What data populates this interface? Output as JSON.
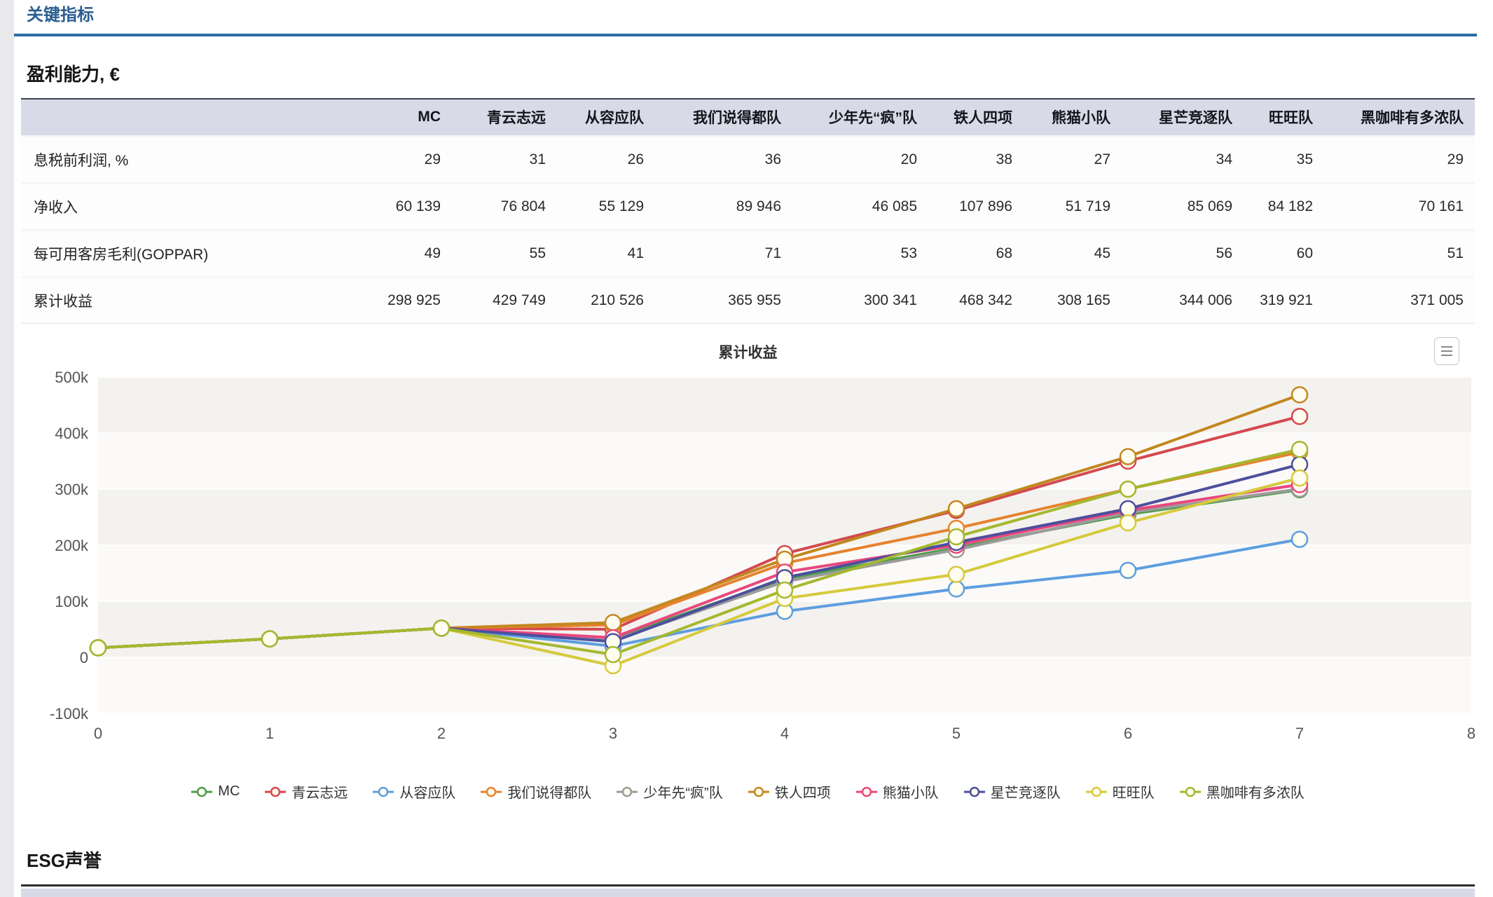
{
  "page": {
    "title": "关键指标",
    "section_title": "盈利能力, €",
    "next_section_title": "ESG声誉"
  },
  "accent_colors": {
    "title_blue": "#2a5d8f",
    "rule_blue": "#2d6ca3",
    "table_header_bg": "#d8dae7"
  },
  "table": {
    "columns": [
      "",
      "MC",
      "青云志远",
      "从容应队",
      "我们说得都队",
      "少年先“疯”队",
      "铁人四项",
      "熊猫小队",
      "星芒竞逐队",
      "旺旺队",
      "黑咖啡有多浓队"
    ],
    "rows": [
      {
        "label": "息税前利润, %",
        "values": [
          "29",
          "31",
          "26",
          "36",
          "20",
          "38",
          "27",
          "34",
          "35",
          "29"
        ]
      },
      {
        "label": "净收入",
        "values": [
          "60 139",
          "76 804",
          "55 129",
          "89 946",
          "46 085",
          "107 896",
          "51 719",
          "85 069",
          "84 182",
          "70 161"
        ]
      },
      {
        "label": "每可用客房毛利(GOPPAR)",
        "values": [
          "49",
          "55",
          "41",
          "71",
          "53",
          "68",
          "45",
          "56",
          "60",
          "51"
        ]
      },
      {
        "label": "累计收益",
        "values": [
          "298 925",
          "429 749",
          "210 526",
          "365 955",
          "300 341",
          "468 342",
          "308 165",
          "344 006",
          "319 921",
          "371 005"
        ]
      }
    ]
  },
  "chart_menu_icon": "hamburger-menu-icon",
  "chart_data": {
    "type": "line",
    "title": "累计收益",
    "xlabel": "",
    "ylabel": "",
    "xlim": [
      0,
      8
    ],
    "ylim": [
      -100000,
      500000
    ],
    "x_ticks": [
      0,
      1,
      2,
      3,
      4,
      5,
      6,
      7,
      8
    ],
    "y_ticks": [
      -100000,
      0,
      100000,
      200000,
      300000,
      400000,
      500000
    ],
    "y_tick_labels": [
      "-100k",
      "0",
      "100k",
      "200k",
      "300k",
      "400k",
      "500k"
    ],
    "grid": true,
    "legend_position": "bottom",
    "x": [
      0,
      1,
      2,
      3,
      4,
      5,
      6,
      7
    ],
    "series": [
      {
        "name": "MC",
        "color": "#4d9e4a",
        "values": [
          17000,
          33000,
          52000,
          33000,
          140000,
          195000,
          255000,
          298925
        ]
      },
      {
        "name": "青云志远",
        "color": "#d4494f",
        "values": [
          17000,
          33000,
          52000,
          50000,
          185000,
          262000,
          350000,
          429749
        ]
      },
      {
        "name": "从容应队",
        "color": "#5d9ee0",
        "values": [
          17000,
          33000,
          52000,
          20000,
          82000,
          122000,
          155000,
          210526
        ]
      },
      {
        "name": "我们说得都队",
        "color": "#e78330",
        "values": [
          17000,
          33000,
          52000,
          58000,
          168000,
          230000,
          300000,
          365955
        ]
      },
      {
        "name": "少年先“疯”队",
        "color": "#9b9b9b",
        "values": [
          17000,
          33000,
          52000,
          30000,
          135000,
          192000,
          258000,
          300341
        ]
      },
      {
        "name": "铁人四项",
        "color": "#c3871f",
        "values": [
          17000,
          33000,
          52000,
          62000,
          175000,
          265000,
          358000,
          468342
        ]
      },
      {
        "name": "熊猫小队",
        "color": "#e8487e",
        "values": [
          17000,
          33000,
          52000,
          35000,
          152000,
          200000,
          262000,
          308165
        ]
      },
      {
        "name": "星芒竞逐队",
        "color": "#4d4f9d",
        "values": [
          17000,
          33000,
          52000,
          28000,
          142000,
          205000,
          265000,
          344006
        ]
      },
      {
        "name": "旺旺队",
        "color": "#d6ca3d",
        "values": [
          17000,
          33000,
          52000,
          -15000,
          105000,
          148000,
          240000,
          319921
        ]
      },
      {
        "name": "黑咖啡有多浓队",
        "color": "#a4b82f",
        "values": [
          17000,
          33000,
          52000,
          5000,
          120000,
          215000,
          300000,
          371005
        ]
      }
    ],
    "plot_style": {
      "band_dark": "#f4f2ee",
      "band_light": "#fbfaf8",
      "gridline": "#ffffff",
      "marker_fill": "#fffcf0"
    }
  }
}
